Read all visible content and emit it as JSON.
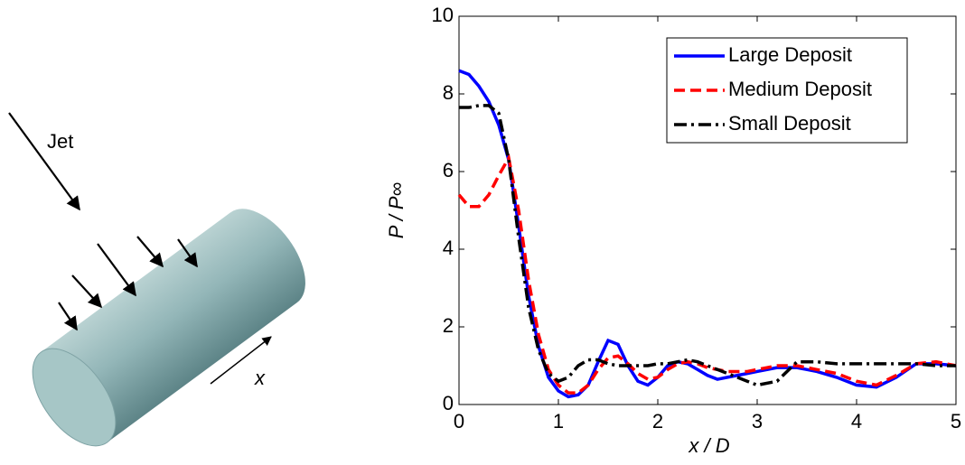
{
  "diagram": {
    "jet_label": "Jet",
    "axis_label": "x"
  },
  "chart_data": {
    "type": "line",
    "x_label": "x / D",
    "y_label": "P / P∞",
    "x": [
      0,
      0.1,
      0.2,
      0.3,
      0.4,
      0.5,
      0.6,
      0.7,
      0.8,
      0.9,
      1.0,
      1.1,
      1.2,
      1.3,
      1.4,
      1.5,
      1.6,
      1.7,
      1.8,
      1.9,
      2.0,
      2.1,
      2.2,
      2.3,
      2.4,
      2.5,
      2.6,
      2.7,
      2.8,
      2.9,
      3.0,
      3.2,
      3.4,
      3.6,
      3.8,
      4.0,
      4.2,
      4.4,
      4.6,
      4.8,
      5.0
    ],
    "series": [
      {
        "name": "Large Deposit",
        "color": "#0000ff",
        "style": "solid",
        "values": [
          8.6,
          8.5,
          8.2,
          7.8,
          7.2,
          6.3,
          4.6,
          2.8,
          1.5,
          0.7,
          0.35,
          0.2,
          0.25,
          0.5,
          1.1,
          1.65,
          1.55,
          1.0,
          0.6,
          0.5,
          0.7,
          1.0,
          1.1,
          1.05,
          0.9,
          0.75,
          0.65,
          0.7,
          0.75,
          0.8,
          0.85,
          0.95,
          0.95,
          0.85,
          0.7,
          0.5,
          0.45,
          0.7,
          1.05,
          1.05,
          1.0
        ]
      },
      {
        "name": "Medium Deposit",
        "color": "#ff0000",
        "style": "dashed",
        "values": [
          5.4,
          5.1,
          5.1,
          5.4,
          5.9,
          6.35,
          5.0,
          3.2,
          1.8,
          0.9,
          0.5,
          0.3,
          0.3,
          0.5,
          0.9,
          1.2,
          1.25,
          1.05,
          0.8,
          0.65,
          0.7,
          0.9,
          1.05,
          1.1,
          1.05,
          0.95,
          0.9,
          0.85,
          0.85,
          0.85,
          0.9,
          1.0,
          1.0,
          0.9,
          0.8,
          0.6,
          0.5,
          0.75,
          1.05,
          1.1,
          1.0
        ]
      },
      {
        "name": "Small Deposit",
        "color": "#000000",
        "style": "dashdot",
        "values": [
          7.65,
          7.65,
          7.7,
          7.7,
          7.5,
          6.3,
          4.3,
          2.5,
          1.4,
          0.8,
          0.6,
          0.7,
          1.0,
          1.15,
          1.15,
          1.05,
          1.0,
          1.0,
          1.0,
          1.0,
          1.05,
          1.05,
          1.1,
          1.15,
          1.1,
          1.0,
          0.9,
          0.8,
          0.7,
          0.6,
          0.5,
          0.6,
          1.1,
          1.1,
          1.05,
          1.05,
          1.05,
          1.05,
          1.05,
          1.0,
          1.0
        ]
      }
    ],
    "xlim": [
      0,
      5
    ],
    "xticks": [
      0,
      1,
      2,
      3,
      4,
      5
    ],
    "ylim": [
      0,
      10
    ],
    "yticks": [
      0,
      2,
      4,
      6,
      8,
      10
    ],
    "legend": "upper right",
    "grid": false
  }
}
